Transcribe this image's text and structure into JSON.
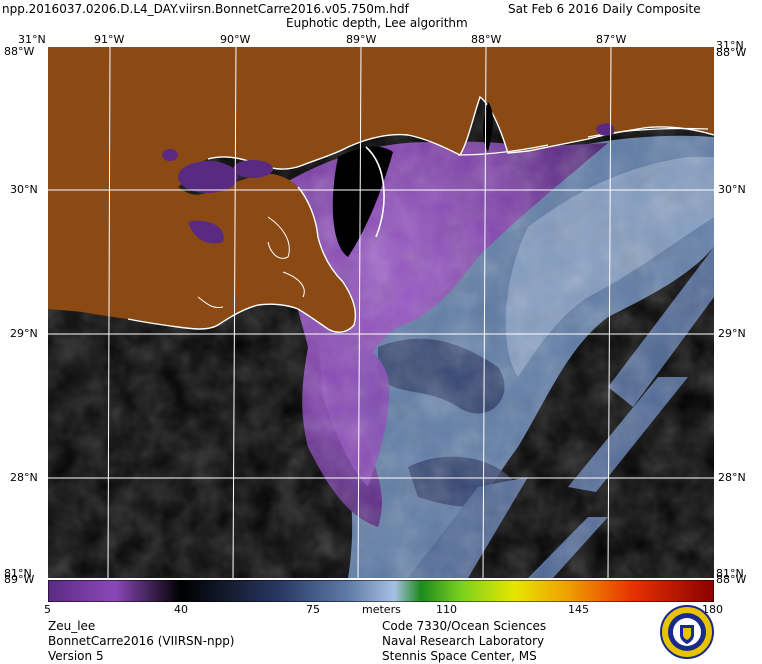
{
  "header": {
    "filename": "npp.2016037.0206.D.L4_DAY.viirsn.BonnetCarre2016.v05.750m.hdf",
    "date": "Sat Feb  6 2016 Daily Composite",
    "product": "Euphotic depth, Lee algorithm"
  },
  "axes": {
    "lon_top": [
      "91°W",
      "90°W",
      "89°W",
      "88°W",
      "87°W"
    ],
    "lat_left_top": "31°N",
    "lat_left": [
      "30°N",
      "29°N",
      "28°N"
    ],
    "lat_right": [
      "30°N",
      "29°N",
      "28°N"
    ],
    "corner_tl_a": "31°N",
    "corner_tl_b": "88°W",
    "corner_tr_a": "31°N",
    "corner_tr_b": "88°W",
    "corner_bl_a": "81°N",
    "corner_bl_b": "89°W",
    "corner_br_a": "81°N",
    "corner_br_b": "88°W"
  },
  "colorbar": {
    "ticks": [
      "5",
      "40",
      "75",
      "110",
      "145",
      "180"
    ],
    "units": "meters",
    "min": 5,
    "max": 180
  },
  "footer": {
    "param": "Zeu_lee",
    "region": "BonnetCarre2016 (VIIRSN-npp)",
    "version": "Version 5",
    "org1": "Code 7330/Ocean Sciences",
    "org2": "Naval Research Laboratory",
    "org3": "Stennis Space Center, MS"
  },
  "colors": {
    "land": "#8b4a14",
    "no_data": "#000000",
    "coastline": "#ffffff",
    "grid": "#ffffff"
  }
}
